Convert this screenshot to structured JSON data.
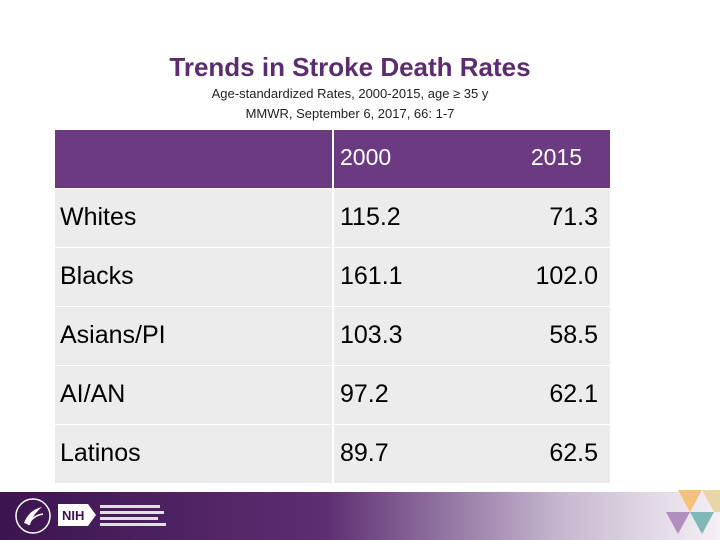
{
  "slide": {
    "title": "Trends in Stroke Death Rates",
    "subtitle_line1": "Age-standardized Rates, 2000-2015, age ≥ 35 y",
    "subtitle_line2": "MMWR, September 6, 2017, 66: 1-7"
  },
  "table": {
    "headers": [
      "",
      "2000",
      "2015"
    ],
    "rows": [
      {
        "group": "Whites",
        "y2000": "115.2",
        "y2015": "71.3"
      },
      {
        "group": "Blacks",
        "y2000": "161.1",
        "y2015": "102.0"
      },
      {
        "group": "Asians/PI",
        "y2000": "103.3",
        "y2015": "58.5"
      },
      {
        "group": "AI/AN",
        "y2000": "97.2",
        "y2015": "62.1"
      },
      {
        "group": "Latinos",
        "y2000": "89.7",
        "y2015": "62.5"
      }
    ]
  },
  "footer": {
    "logos": [
      "hhs-seal-icon",
      "nih-logo",
      "national-institute-minority-health-logo"
    ],
    "institute_text": "National Institute on Minority Health and Health Disparities"
  },
  "colors": {
    "title": "#5b2d6e",
    "header_bg": "#6b3a80",
    "row_bg": "#ececec",
    "footer_dark": "#3c1450"
  }
}
